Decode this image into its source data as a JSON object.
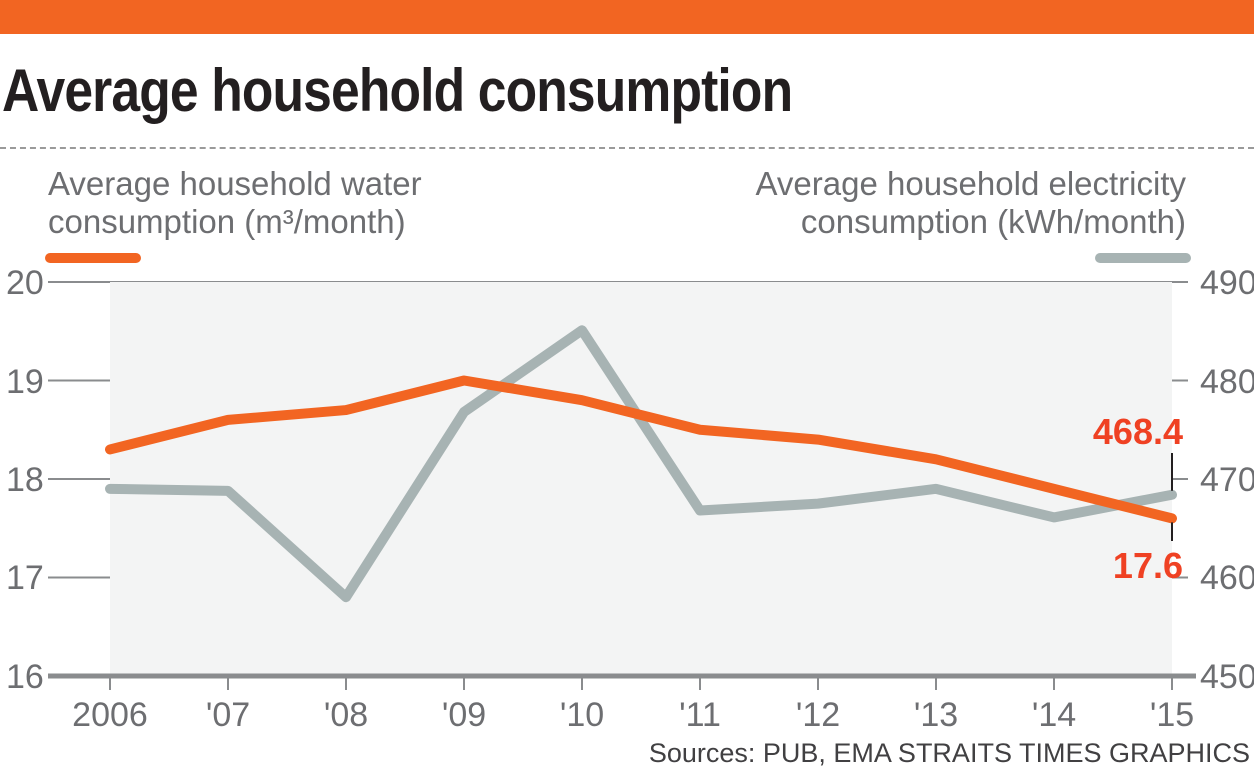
{
  "header": {
    "bar_color": "#f26522",
    "title": "Average household consumption"
  },
  "chart_data": {
    "type": "line",
    "title": "Average household consumption",
    "x": [
      "2006",
      "'07",
      "'08",
      "'09",
      "'10",
      "'11",
      "'12",
      "'13",
      "'14",
      "'15"
    ],
    "series": [
      {
        "name": "Average household water consumption (m³/month)",
        "legend_lines": [
          "Average  household water",
          "consumption (m³/month)"
        ],
        "axis": "left",
        "color": "#f26522",
        "values": [
          18.3,
          18.6,
          18.7,
          19.0,
          18.8,
          18.5,
          18.4,
          18.2,
          17.9,
          17.6
        ]
      },
      {
        "name": "Average household electricity consumption (kWh/month)",
        "legend_lines": [
          "Average  household electricity",
          "consumption (kWh/month)"
        ],
        "axis": "right",
        "color": "#a7b3b3",
        "values": [
          469.0,
          468.8,
          458.0,
          476.8,
          485.1,
          466.8,
          467.5,
          469.0,
          466.1,
          468.4
        ]
      }
    ],
    "left_axis": {
      "ylim": [
        16,
        20
      ],
      "ticks": [
        "20",
        "19",
        "18",
        "17",
        "16"
      ],
      "tick_values": [
        20,
        19,
        18,
        17,
        16
      ]
    },
    "right_axis": {
      "ylim": [
        450,
        490
      ],
      "ticks": [
        "490",
        "480",
        "470",
        "460",
        "450"
      ],
      "tick_values": [
        490,
        480,
        470,
        460,
        450
      ]
    },
    "annotations": [
      {
        "series": 1,
        "label": "468.4"
      },
      {
        "series": 0,
        "label": "17.6"
      }
    ],
    "annotation_color": "#ef4123",
    "grid": true,
    "legend": "top-left and top-right"
  },
  "footer": {
    "source": "Sources: PUB, EMA   STRAITS TIMES GRAPHICS"
  }
}
